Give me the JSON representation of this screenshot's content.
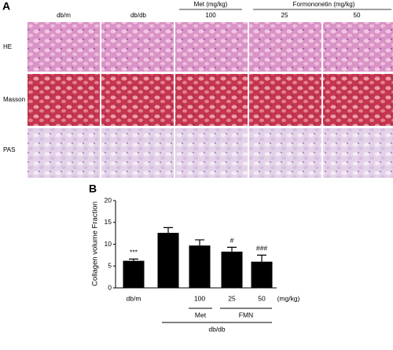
{
  "panel_a": {
    "label": "A",
    "columns": [
      "db/m",
      "db/db",
      "100",
      "25",
      "50"
    ],
    "column_groups": [
      "Met (mg/kg)",
      "Formononetin (mg/kg)"
    ],
    "rows": [
      "HE",
      "Masson",
      "PAS"
    ]
  },
  "chart_data": {
    "type": "bar",
    "panel_label": "B",
    "y_label": "Collagen volume Fraction",
    "categories": [
      "db/m",
      null,
      "100",
      "25",
      "50"
    ],
    "values": [
      6.2,
      12.6,
      9.7,
      8.3,
      6.0
    ],
    "errors": [
      0.4,
      1.2,
      1.3,
      1.0,
      1.5
    ],
    "significance": [
      "***",
      null,
      null,
      "#",
      "###"
    ],
    "unit_label": "(mg/kg)",
    "group_labels": [
      "Met",
      "FMN",
      "db/db"
    ],
    "color": "#000000",
    "ylim": [
      0,
      20
    ],
    "yticks": [
      0,
      5,
      10,
      15,
      20
    ]
  }
}
